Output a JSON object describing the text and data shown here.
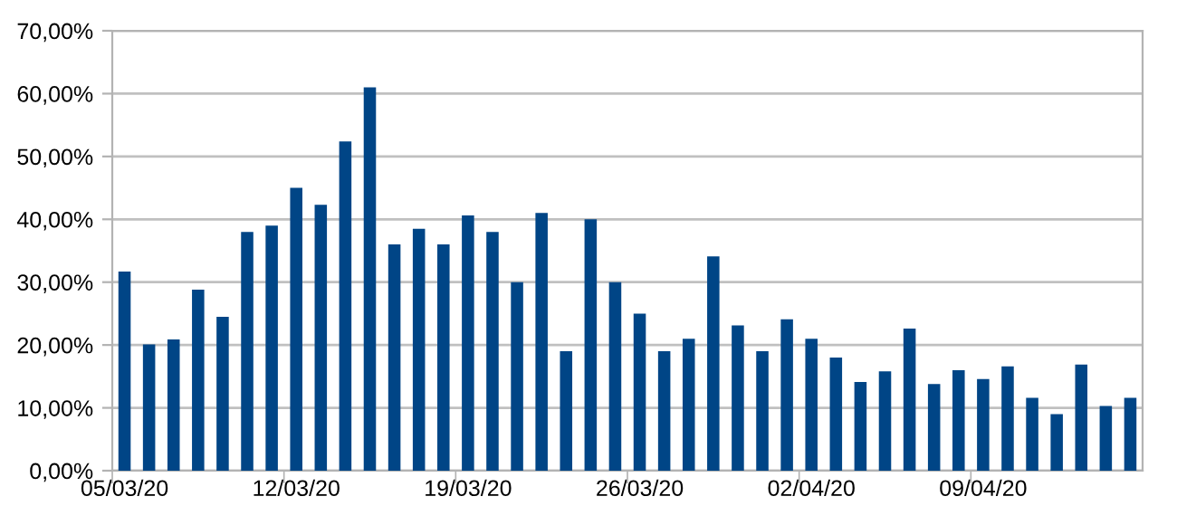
{
  "chart_data": {
    "type": "bar",
    "categories": [
      "05/03/20",
      null,
      null,
      null,
      null,
      null,
      null,
      "12/03/20",
      null,
      null,
      null,
      null,
      null,
      null,
      "19/03/20",
      null,
      null,
      null,
      null,
      null,
      null,
      "26/03/20",
      null,
      null,
      null,
      null,
      null,
      null,
      "02/04/20",
      null,
      null,
      null,
      null,
      null,
      null,
      "09/04/20",
      null,
      null,
      null,
      null,
      null,
      null
    ],
    "values": [
      31.7,
      20.1,
      20.9,
      28.8,
      24.5,
      38,
      39,
      45,
      42.3,
      52.4,
      61,
      36,
      38.5,
      36,
      40.6,
      38,
      30,
      41,
      19,
      40,
      30,
      25,
      19,
      21,
      34.1,
      23.1,
      19,
      24.1,
      21,
      18,
      14.1,
      15.8,
      22.6,
      13.8,
      16,
      14.6,
      16.6,
      11.6,
      9,
      16.9,
      10.3,
      11.6
    ],
    "color": "#004586",
    "ylim": [
      0,
      70
    ],
    "yticks": [
      {
        "value": 0,
        "label": "0,00%"
      },
      {
        "value": 10,
        "label": "10,00%"
      },
      {
        "value": 20,
        "label": "20,00%"
      },
      {
        "value": 30,
        "label": "30,00%"
      },
      {
        "value": 40,
        "label": "40,00%"
      },
      {
        "value": 50,
        "label": "50,00%"
      },
      {
        "value": 60,
        "label": "60,00%"
      },
      {
        "value": 70,
        "label": "70,00%"
      }
    ],
    "grid": "y"
  }
}
